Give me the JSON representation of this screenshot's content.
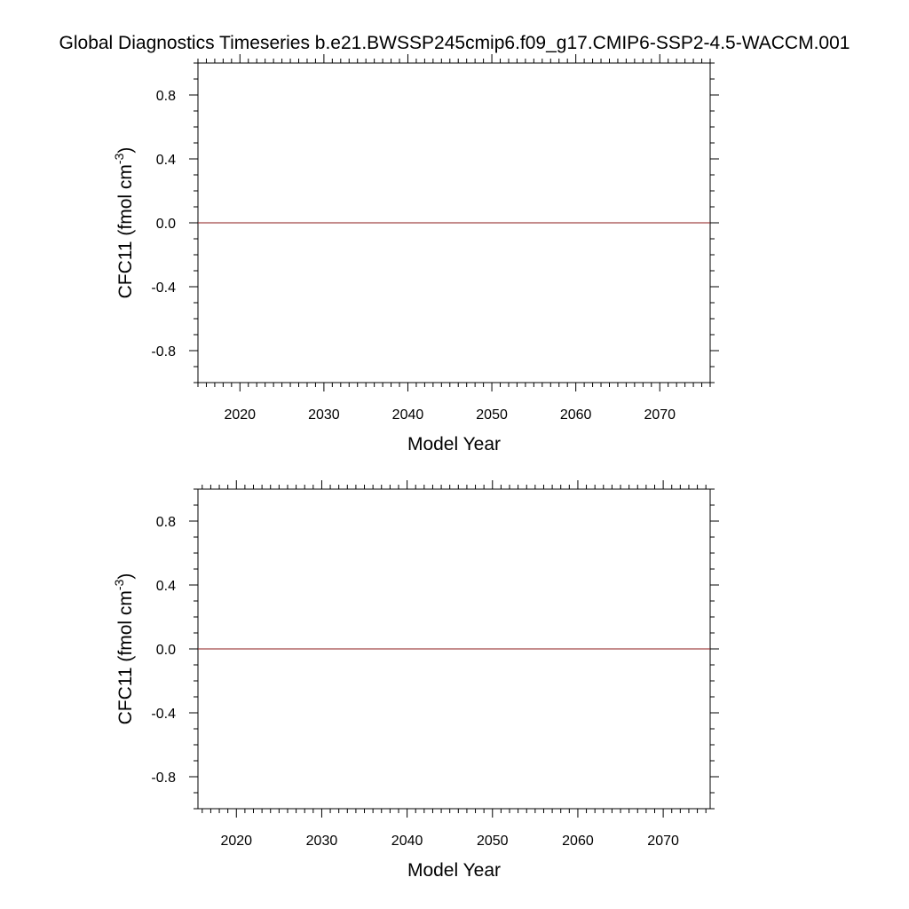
{
  "title": "Global Diagnostics Timeseries b.e21.BWSSP245cmip6.f09_g17.CMIP6-SSP2-4.5-WACCM.001",
  "colors": {
    "series": "#8b1a1a",
    "axes": "#000000",
    "background": "#ffffff"
  },
  "chart_data": [
    {
      "type": "line",
      "xlabel": "Model Year",
      "ylabel": "CFC11  (fmol cm",
      "ylabel_sup": "-3",
      "ylabel_close": ")",
      "xlim": [
        2015,
        2076
      ],
      "ylim": [
        -1.0,
        1.0
      ],
      "xticks": [
        2020,
        2030,
        2040,
        2050,
        2060,
        2070
      ],
      "xtick_labels": [
        "2020",
        "2030",
        "2040",
        "2050",
        "2060",
        "2070"
      ],
      "yticks": [
        0.8,
        0.4,
        0.0,
        -0.4,
        -0.8
      ],
      "ytick_labels": [
        "0.8",
        "0.4",
        "0.0",
        "-0.4",
        "-0.8"
      ],
      "series": [
        {
          "x": [
            2015,
            2076
          ],
          "y": [
            0.0,
            0.0
          ]
        }
      ],
      "grid": false
    },
    {
      "type": "line",
      "xlabel": "Model Year",
      "ylabel": "CFC11  (fmol cm",
      "ylabel_sup": "-3",
      "ylabel_close": ")",
      "xlim": [
        2015.5,
        2075.5
      ],
      "ylim": [
        -1.0,
        1.0
      ],
      "xticks": [
        2020,
        2030,
        2040,
        2050,
        2060,
        2070
      ],
      "xtick_labels": [
        "2020",
        "2030",
        "2040",
        "2050",
        "2060",
        "2070"
      ],
      "yticks": [
        0.8,
        0.4,
        0.0,
        -0.4,
        -0.8
      ],
      "ytick_labels": [
        "0.8",
        "0.4",
        "0.0",
        "-0.4",
        "-0.8"
      ],
      "series": [
        {
          "x": [
            2015.5,
            2075.5
          ],
          "y": [
            0.0,
            0.0
          ]
        }
      ],
      "grid": false
    }
  ]
}
